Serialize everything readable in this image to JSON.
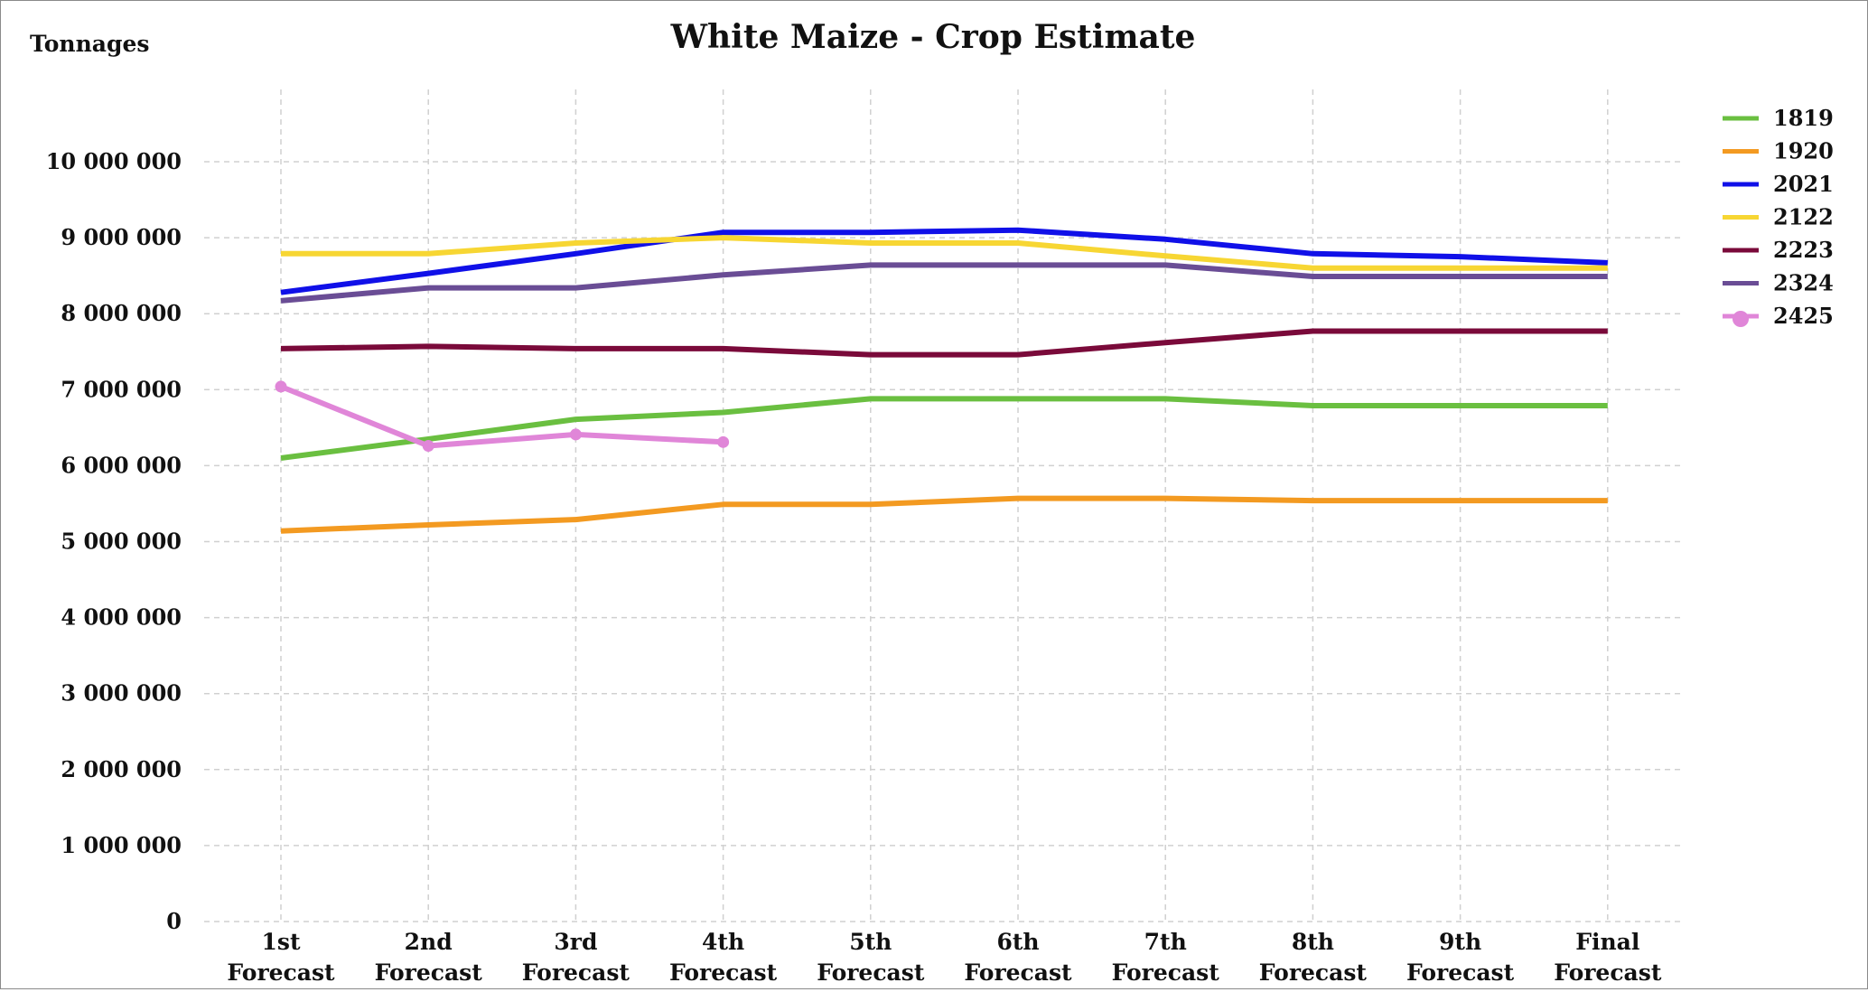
{
  "chart_data": {
    "type": "line",
    "title": "White Maize - Crop Estimate",
    "ylabel": "Tonnages",
    "xlabel": "",
    "ylim": [
      0,
      10000000
    ],
    "y_ticks": [
      {
        "value": 0,
        "label": "0"
      },
      {
        "value": 1000000,
        "label": "1 000 000"
      },
      {
        "value": 2000000,
        "label": "2 000 000"
      },
      {
        "value": 3000000,
        "label": "3 000 000"
      },
      {
        "value": 4000000,
        "label": "4 000 000"
      },
      {
        "value": 5000000,
        "label": "5 000 000"
      },
      {
        "value": 6000000,
        "label": "6 000 000"
      },
      {
        "value": 7000000,
        "label": "7 000 000"
      },
      {
        "value": 8000000,
        "label": "8 000 000"
      },
      {
        "value": 9000000,
        "label": "9 000 000"
      },
      {
        "value": 10000000,
        "label": "10 000 000"
      }
    ],
    "categories": [
      [
        "1st",
        "Forecast"
      ],
      [
        "2nd",
        "Forecast"
      ],
      [
        "3rd",
        "Forecast"
      ],
      [
        "4th",
        "Forecast"
      ],
      [
        "5th",
        "Forecast"
      ],
      [
        "6th",
        "Forecast"
      ],
      [
        "7th",
        "Forecast"
      ],
      [
        "8th",
        "Forecast"
      ],
      [
        "9th",
        "Forecast"
      ],
      [
        "Final",
        "Forecast"
      ]
    ],
    "grid": true,
    "legend_position": "right",
    "series": [
      {
        "name": "1819",
        "color": "#6abf40",
        "markers": false,
        "values": [
          6100000,
          6350000,
          6610000,
          6700000,
          6880000,
          6880000,
          6880000,
          6790000,
          6790000,
          6790000
        ]
      },
      {
        "name": "1920",
        "color": "#f39a21",
        "markers": false,
        "values": [
          5140000,
          5220000,
          5290000,
          5490000,
          5490000,
          5570000,
          5570000,
          5540000,
          5540000,
          5540000
        ]
      },
      {
        "name": "2021",
        "color": "#1010e8",
        "markers": false,
        "values": [
          8280000,
          8530000,
          8790000,
          9070000,
          9070000,
          9100000,
          8980000,
          8790000,
          8750000,
          8670000
        ]
      },
      {
        "name": "2122",
        "color": "#f7d633",
        "markers": false,
        "values": [
          8790000,
          8790000,
          8930000,
          9000000,
          8930000,
          8930000,
          8760000,
          8600000,
          8600000,
          8600000
        ]
      },
      {
        "name": "2223",
        "color": "#7a0a3a",
        "markers": false,
        "values": [
          7540000,
          7570000,
          7540000,
          7540000,
          7460000,
          7460000,
          7620000,
          7770000,
          7770000,
          7770000
        ]
      },
      {
        "name": "2324",
        "color": "#6a4d95",
        "markers": false,
        "values": [
          8170000,
          8340000,
          8340000,
          8510000,
          8640000,
          8640000,
          8640000,
          8490000,
          8490000,
          8490000
        ]
      },
      {
        "name": "2425",
        "color": "#e086d8",
        "markers": true,
        "values": [
          7040000,
          6260000,
          6410000,
          6310000,
          null,
          null,
          null,
          null,
          null,
          null
        ]
      }
    ]
  }
}
